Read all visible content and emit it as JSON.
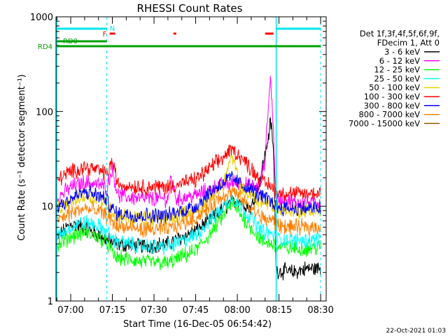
{
  "chart_data": {
    "type": "line",
    "title": "RHESSI Count Rates",
    "xlabel": "Start Time (16-Dec-05 06:54:42)",
    "ylabel": "Count Rate (s⁻¹ detector segment⁻¹)",
    "x_scale": "time",
    "y_scale": "log",
    "xlim": [
      "06:54:42",
      "08:32:00"
    ],
    "ylim": [
      1,
      1000
    ],
    "x_ticks": [
      "07:00",
      "07:15",
      "07:30",
      "07:45",
      "08:00",
      "08:15",
      "08:30"
    ],
    "y_ticks": [
      {
        "value": 1,
        "label": "1"
      },
      {
        "value": 10,
        "label": "10"
      },
      {
        "value": 100,
        "label": "100"
      },
      {
        "value": 1000,
        "label": "1000"
      }
    ],
    "legend": {
      "placement": "right",
      "header": [
        "Det 1f,3f,4f,5f,6f,9f,",
        "FDecim 1, Att 0"
      ]
    },
    "timestamp": "22-Oct-2021 01:03",
    "flags": {
      "saa": {
        "label": "N",
        "color": "#00e5ee",
        "segments": [
          [
            "06:55",
            "07:13"
          ],
          [
            "08:14",
            "08:30"
          ]
        ]
      },
      "flare": {
        "label": "F",
        "color": "#ff0000",
        "segments": [
          [
            "07:14",
            "07:16"
          ],
          [
            "07:37",
            "07:38"
          ],
          [
            "08:10",
            "08:13"
          ]
        ]
      },
      "decim": {
        "label": "RD0",
        "color": "#00a000",
        "segments": [
          [
            "06:55",
            "07:13"
          ]
        ]
      },
      "rear_decim": {
        "label": "RD4",
        "color": "#00a000",
        "segments": [
          [
            "06:55",
            "07:15"
          ],
          [
            "07:15",
            "07:46"
          ],
          [
            "07:46",
            "08:13"
          ],
          [
            "08:13",
            "08:30"
          ]
        ]
      }
    },
    "night_markers": [
      "06:55",
      "07:13",
      "08:14",
      "08:30"
    ],
    "series": [
      {
        "name": "3 - 6 keV",
        "color": "#000000",
        "times": [
          "06:55",
          "07:00",
          "07:05",
          "07:10",
          "07:13",
          "07:16",
          "07:25",
          "07:35",
          "07:45",
          "07:50",
          "07:55",
          "08:00",
          "08:05",
          "08:08",
          "08:11",
          "08:12",
          "08:13",
          "08:14",
          "08:20",
          "08:25",
          "08:30"
        ],
        "values": [
          4.6,
          6.5,
          6.0,
          5.0,
          4.4,
          4.0,
          3.8,
          4.0,
          5.5,
          7.0,
          9.5,
          12,
          9.5,
          18,
          50,
          80,
          40,
          2.1,
          2.0,
          2.2,
          2.2
        ]
      },
      {
        "name": "6 - 12 keV",
        "color": "#ff00ff",
        "times": [
          "06:55",
          "07:00",
          "07:05",
          "07:10",
          "07:13",
          "07:15",
          "07:17",
          "07:25",
          "07:35",
          "07:36",
          "07:38",
          "07:45",
          "07:50",
          "07:55",
          "08:00",
          "08:05",
          "08:08",
          "08:10",
          "08:11",
          "08:12",
          "08:13",
          "08:14",
          "08:20",
          "08:25",
          "08:30"
        ],
        "values": [
          12,
          16,
          18,
          17,
          16,
          25,
          13,
          12,
          12,
          20,
          12,
          13,
          15,
          17,
          18,
          16,
          16,
          30,
          100,
          240,
          60,
          12,
          11,
          11,
          11
        ]
      },
      {
        "name": "12 - 25 keV",
        "color": "#00ff00",
        "times": [
          "06:55",
          "07:00",
          "07:05",
          "07:10",
          "07:13",
          "07:16",
          "07:25",
          "07:35",
          "07:45",
          "07:50",
          "07:55",
          "07:58",
          "08:00",
          "08:05",
          "08:09",
          "08:13",
          "08:14",
          "08:20",
          "08:25",
          "08:30"
        ],
        "values": [
          3.8,
          4.8,
          5.3,
          4.7,
          4.1,
          2.9,
          2.6,
          2.5,
          3.4,
          5.0,
          8.0,
          11,
          9.0,
          6.0,
          4.2,
          4.0,
          3.7,
          3.6,
          3.6,
          3.7
        ]
      },
      {
        "name": "25 - 50 keV",
        "color": "#00ffff",
        "times": [
          "06:55",
          "07:00",
          "07:05",
          "07:10",
          "07:13",
          "07:16",
          "07:25",
          "07:35",
          "07:45",
          "07:50",
          "07:55",
          "07:58",
          "08:00",
          "08:05",
          "08:09",
          "08:13",
          "08:14",
          "08:20",
          "08:25",
          "08:30"
        ],
        "values": [
          4.8,
          6.2,
          6.8,
          6.2,
          5.4,
          4.3,
          3.8,
          3.7,
          4.9,
          7.0,
          10,
          12.5,
          11,
          7.5,
          5.4,
          5.0,
          4.5,
          4.4,
          4.4,
          4.5
        ]
      },
      {
        "name": "50 - 100 keV",
        "color": "#e8d000",
        "times": [
          "06:55",
          "07:00",
          "07:05",
          "07:10",
          "07:13",
          "07:16",
          "07:25",
          "07:35",
          "07:45",
          "07:50",
          "07:55",
          "07:57",
          "07:58",
          "07:59",
          "08:01",
          "08:05",
          "08:09",
          "08:13",
          "08:14",
          "08:20",
          "08:25",
          "08:30"
        ],
        "values": [
          9,
          11,
          13,
          12,
          10.5,
          8,
          7.5,
          7.5,
          9,
          12,
          17,
          28,
          32,
          28,
          15,
          13,
          11,
          10,
          9.5,
          9,
          9,
          9
        ]
      },
      {
        "name": "100 - 300 keV",
        "color": "#ff0000",
        "times": [
          "06:55",
          "07:00",
          "07:05",
          "07:10",
          "07:13",
          "07:15",
          "07:17",
          "07:25",
          "07:35",
          "07:45",
          "07:50",
          "07:55",
          "07:58",
          "08:00",
          "08:05",
          "08:09",
          "08:13",
          "08:14",
          "08:20",
          "08:25",
          "08:30"
        ],
        "values": [
          19,
          23,
          26,
          24,
          22,
          30,
          17,
          16,
          16,
          19,
          25,
          33,
          40,
          36,
          25,
          18,
          16,
          14,
          13.5,
          13.5,
          14
        ]
      },
      {
        "name": "300 - 800 keV",
        "color": "#0000ff",
        "times": [
          "06:55",
          "07:00",
          "07:05",
          "07:10",
          "07:13",
          "07:16",
          "07:25",
          "07:35",
          "07:45",
          "07:50",
          "07:55",
          "07:58",
          "08:00",
          "08:05",
          "08:09",
          "08:13",
          "08:14",
          "08:20",
          "08:25",
          "08:30"
        ],
        "values": [
          10,
          12,
          14,
          13,
          11.5,
          8.5,
          8,
          8,
          10,
          14,
          18,
          20,
          18,
          15,
          12.5,
          11,
          10,
          9.5,
          9.5,
          9.5
        ]
      },
      {
        "name": "800 - 7000 keV",
        "color": "#ff8000",
        "times": [
          "06:55",
          "07:00",
          "07:05",
          "07:10",
          "07:13",
          "07:16",
          "07:25",
          "07:35",
          "07:45",
          "07:50",
          "07:55",
          "07:58",
          "08:00",
          "08:05",
          "08:09",
          "08:13",
          "08:14",
          "08:20",
          "08:25",
          "08:30"
        ],
        "values": [
          7,
          8.5,
          9.5,
          8.8,
          8,
          6.3,
          5.7,
          5.7,
          7.5,
          10,
          13,
          14.5,
          13,
          9.5,
          7.5,
          7,
          6.3,
          6,
          6,
          6.1
        ]
      },
      {
        "name": "7000 - 15000 keV",
        "color": "#8b5a00",
        "times": [],
        "values": []
      }
    ]
  }
}
